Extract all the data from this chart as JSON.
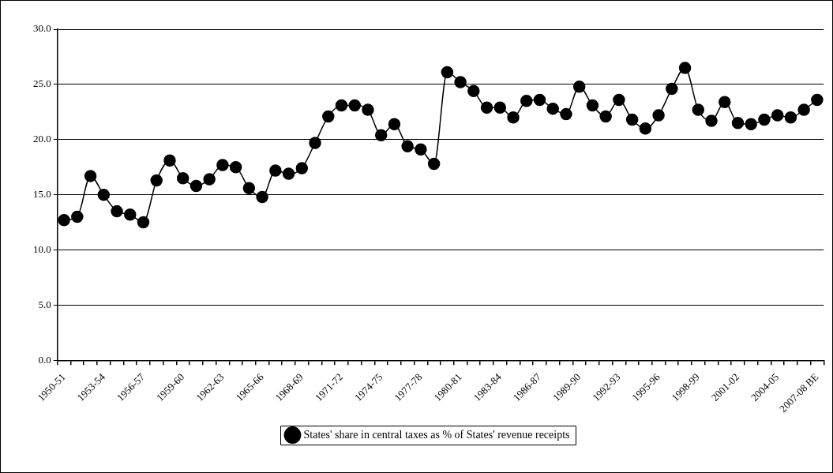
{
  "chart_data": {
    "type": "line",
    "categories": [
      "1950-51",
      null,
      null,
      "1953-54",
      null,
      null,
      "1956-57",
      null,
      null,
      "1959-60",
      null,
      null,
      "1962-63",
      null,
      null,
      "1965-66",
      null,
      null,
      "1968-69",
      null,
      null,
      "1971-72",
      null,
      null,
      "1974-75",
      null,
      null,
      "1977-78",
      null,
      null,
      "1980-81",
      null,
      null,
      "1983-84",
      null,
      null,
      "1986-87",
      null,
      null,
      "1989-90",
      null,
      null,
      "1992-93",
      null,
      null,
      "1995-96",
      null,
      null,
      "1998-99",
      null,
      null,
      "2001-02",
      null,
      null,
      "2004-05",
      null,
      null,
      "2007-08 BE"
    ],
    "series": [
      {
        "name": "States' share in central taxes as % of States' revenue receipts",
        "color": "#000000",
        "values": [
          12.7,
          13.0,
          16.7,
          15.0,
          13.5,
          13.2,
          12.5,
          16.3,
          18.1,
          16.5,
          15.8,
          16.4,
          17.7,
          17.5,
          15.6,
          14.8,
          17.2,
          16.9,
          17.4,
          19.7,
          22.1,
          23.1,
          23.1,
          22.7,
          20.4,
          21.4,
          19.4,
          19.1,
          17.8,
          26.1,
          25.2,
          24.4,
          22.9,
          22.9,
          22.0,
          23.5,
          23.6,
          22.8,
          22.3,
          24.8,
          23.1,
          22.1,
          23.6,
          21.8,
          21.0,
          22.2,
          24.6,
          26.5,
          22.7,
          21.7,
          23.4,
          21.5,
          21.4,
          21.8,
          22.2,
          22.0,
          22.7,
          23.6
        ]
      }
    ],
    "ylim": [
      0,
      30
    ],
    "yticks": [
      {
        "value": 0,
        "label": "0.0"
      },
      {
        "value": 5,
        "label": "5.0"
      },
      {
        "value": 10,
        "label": "10.0"
      },
      {
        "value": 15,
        "label": "15.0"
      },
      {
        "value": 20,
        "label": "20.0"
      },
      {
        "value": 25,
        "label": "25.0"
      },
      {
        "value": 30,
        "label": "30.0"
      }
    ],
    "grid": "y",
    "legend": "bottom",
    "marker": "circle",
    "line_style": "solid"
  }
}
